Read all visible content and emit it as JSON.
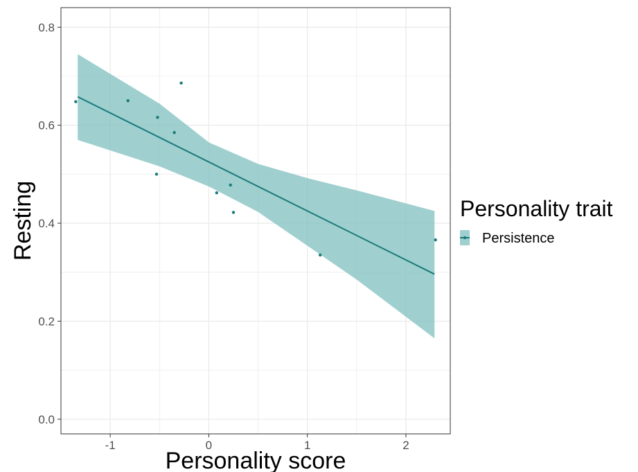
{
  "chart_data": {
    "type": "scatter",
    "title": "",
    "xlabel": "Personality score",
    "ylabel": "Resting",
    "xlim": [
      -1.5,
      2.45
    ],
    "ylim": [
      -0.03,
      0.84
    ],
    "x_ticks": [
      -1,
      0,
      1,
      2
    ],
    "x_tick_labels": [
      "-1",
      "0",
      "1",
      "2"
    ],
    "y_ticks": [
      0.0,
      0.2,
      0.4,
      0.6,
      0.8
    ],
    "y_tick_labels": [
      "0.0",
      "0.2",
      "0.4",
      "0.6",
      "0.8"
    ],
    "grid": true,
    "legend": {
      "title": "Personality trait",
      "position": "right",
      "entries": [
        "Persistence"
      ]
    },
    "colors": {
      "series": "#1a7a7a",
      "ribbon": "#7fbfbf",
      "grid": "#ebebeb",
      "panel_border": "#333333"
    },
    "series": [
      {
        "name": "Persistence",
        "points": [
          {
            "x": -1.35,
            "y": 0.648
          },
          {
            "x": -0.82,
            "y": 0.65
          },
          {
            "x": -0.52,
            "y": 0.616
          },
          {
            "x": -0.53,
            "y": 0.5
          },
          {
            "x": -0.35,
            "y": 0.585
          },
          {
            "x": -0.28,
            "y": 0.686
          },
          {
            "x": 0.08,
            "y": 0.462
          },
          {
            "x": 0.22,
            "y": 0.478
          },
          {
            "x": 0.25,
            "y": 0.422
          },
          {
            "x": 1.13,
            "y": 0.335
          },
          {
            "x": 2.3,
            "y": 0.366
          }
        ],
        "fit_line": [
          {
            "x": -1.33,
            "y": 0.658
          },
          {
            "x": 2.29,
            "y": 0.296
          }
        ],
        "confidence_band": {
          "x": [
            -1.33,
            -0.5,
            0.0,
            0.5,
            1.0,
            1.5,
            2.29
          ],
          "upper": [
            0.745,
            0.644,
            0.565,
            0.521,
            0.492,
            0.467,
            0.425
          ],
          "lower": [
            0.57,
            0.516,
            0.475,
            0.423,
            0.354,
            0.285,
            0.165
          ]
        }
      }
    ]
  }
}
